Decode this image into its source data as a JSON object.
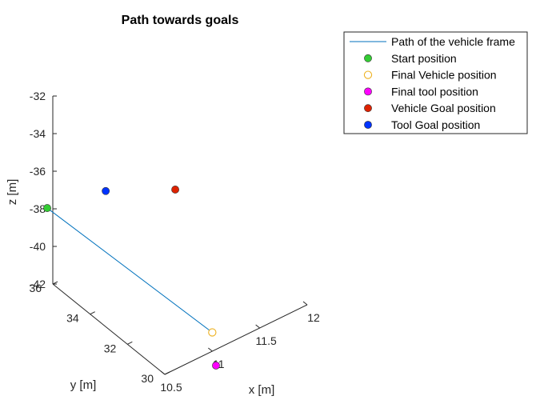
{
  "chart_data": {
    "type": "scatter",
    "title": "Path towards goals",
    "xlabel": "x [m]",
    "ylabel": "y [m]",
    "zlabel": "z [m]",
    "xlim": [
      10.5,
      12
    ],
    "ylim": [
      30,
      36
    ],
    "zlim": [
      -42,
      -32
    ],
    "x_ticks": [
      "10.5",
      "11",
      "11.5",
      "12"
    ],
    "y_ticks": [
      "30",
      "32",
      "34",
      "36"
    ],
    "z_ticks": [
      "-32",
      "-34",
      "-36",
      "-38",
      "-40",
      "-42"
    ],
    "grid": false,
    "legend_position": "top-right",
    "series": [
      {
        "name": "Path of the vehicle frame",
        "kind": "line",
        "color": "#0072BD",
        "points": [
          [
            10.5,
            36.3,
            -38.2
          ],
          [
            11.0,
            30.0,
            -41.0
          ]
        ]
      },
      {
        "name": "Start position",
        "kind": "marker",
        "color": "#33CC33",
        "filled": true,
        "points": [
          [
            10.5,
            36.3,
            -38.2
          ]
        ]
      },
      {
        "name": "Final Vehicle position",
        "kind": "marker",
        "color": "#EDB120",
        "filled": false,
        "points": [
          [
            11.0,
            30.0,
            -41.0
          ]
        ]
      },
      {
        "name": "Final tool position",
        "kind": "marker",
        "color": "#FF00FF",
        "filled": true,
        "points": [
          [
            11.0,
            29.8,
            -42.6
          ]
        ]
      },
      {
        "name": "Vehicle Goal position",
        "kind": "marker",
        "color": "#DD2200",
        "filled": true,
        "points": [
          [
            11.2,
            33.0,
            -36.3
          ]
        ]
      },
      {
        "name": "Tool Goal position",
        "kind": "marker",
        "color": "#0033FF",
        "filled": true,
        "points": [
          [
            10.9,
            35.2,
            -37.4
          ]
        ]
      }
    ]
  }
}
